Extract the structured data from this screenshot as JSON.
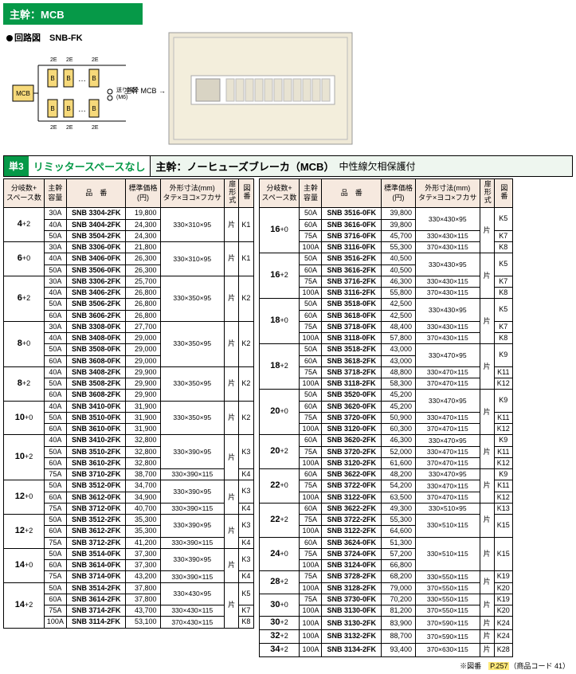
{
  "banner": "主幹：MCB",
  "circuit": {
    "label": "回路図",
    "model": "SNB-FK",
    "mcb": "MCB",
    "note": "送り端子\n(M6)",
    "bk": "B",
    "tap": "2E"
  },
  "photo": {
    "label": "主幹 MCB"
  },
  "subheader": {
    "badge": "単3",
    "txt1": "リミッタースペースなし",
    "txt2a": "主幹：ノーヒューズブレーカ（MCB）",
    "txt2b": "中性線欠相保護付"
  },
  "headers": {
    "c1": "分岐数+\nスペース数",
    "c2": "主幹\n容量",
    "c3": "品　番",
    "c4": "標準価格\n(円)",
    "c5": "外形寸法(mm)\nタテ×ヨコ×フカサ",
    "c6": "扉形式",
    "c7": "図番"
  },
  "left": [
    {
      "bc": "4+2",
      "rows": [
        {
          "cap": "30A",
          "pn": "SNB 3304-2FK",
          "price": "19,800",
          "dim": "330×310×95",
          "door": "片",
          "fig": "K1",
          "dimspan": 3,
          "doorspan": 3
        },
        {
          "cap": "40A",
          "pn": "SNB 3404-2FK",
          "price": "24,300"
        },
        {
          "cap": "50A",
          "pn": "SNB 3504-2FK",
          "price": "24,300"
        }
      ]
    },
    {
      "bc": "6+0",
      "rows": [
        {
          "cap": "30A",
          "pn": "SNB 3306-0FK",
          "price": "21,800",
          "dim": "330×310×95",
          "door": "片",
          "fig": "K1",
          "dimspan": 3,
          "doorspan": 3
        },
        {
          "cap": "40A",
          "pn": "SNB 3406-0FK",
          "price": "26,300"
        },
        {
          "cap": "50A",
          "pn": "SNB 3506-0FK",
          "price": "26,300"
        }
      ]
    },
    {
      "bc": "6+2",
      "rows": [
        {
          "cap": "30A",
          "pn": "SNB 3306-2FK",
          "price": "25,700",
          "dim": "330×350×95",
          "door": "片",
          "fig": "K2",
          "dimspan": 4,
          "doorspan": 4
        },
        {
          "cap": "40A",
          "pn": "SNB 3406-2FK",
          "price": "26,800"
        },
        {
          "cap": "50A",
          "pn": "SNB 3506-2FK",
          "price": "26,800"
        },
        {
          "cap": "60A",
          "pn": "SNB 3606-2FK",
          "price": "26,800"
        }
      ]
    },
    {
      "bc": "8+0",
      "rows": [
        {
          "cap": "30A",
          "pn": "SNB 3308-0FK",
          "price": "27,700",
          "dim": "330×350×95",
          "door": "片",
          "fig": "K2",
          "dimspan": 4,
          "doorspan": 4
        },
        {
          "cap": "40A",
          "pn": "SNB 3408-0FK",
          "price": "29,000"
        },
        {
          "cap": "50A",
          "pn": "SNB 3508-0FK",
          "price": "29,000"
        },
        {
          "cap": "60A",
          "pn": "SNB 3608-0FK",
          "price": "29,000"
        }
      ]
    },
    {
      "bc": "8+2",
      "rows": [
        {
          "cap": "40A",
          "pn": "SNB 3408-2FK",
          "price": "29,900",
          "dim": "330×350×95",
          "door": "片",
          "fig": "K2",
          "dimspan": 3,
          "doorspan": 3
        },
        {
          "cap": "50A",
          "pn": "SNB 3508-2FK",
          "price": "29,900"
        },
        {
          "cap": "60A",
          "pn": "SNB 3608-2FK",
          "price": "29,900"
        }
      ]
    },
    {
      "bc": "10+0",
      "rows": [
        {
          "cap": "40A",
          "pn": "SNB 3410-0FK",
          "price": "31,900",
          "dim": "330×350×95",
          "door": "片",
          "fig": "K2",
          "dimspan": 3,
          "doorspan": 3
        },
        {
          "cap": "50A",
          "pn": "SNB 3510-0FK",
          "price": "31,900"
        },
        {
          "cap": "60A",
          "pn": "SNB 3610-0FK",
          "price": "31,900"
        }
      ]
    },
    {
      "bc": "10+2",
      "rows": [
        {
          "cap": "40A",
          "pn": "SNB 3410-2FK",
          "price": "32,800",
          "dim": "330×390×95",
          "door": "片",
          "fig": "K3",
          "dimspan": 3,
          "doorspan": 4
        },
        {
          "cap": "50A",
          "pn": "SNB 3510-2FK",
          "price": "32,800"
        },
        {
          "cap": "60A",
          "pn": "SNB 3610-2FK",
          "price": "32,800"
        },
        {
          "cap": "75A",
          "pn": "SNB 3710-2FK",
          "price": "38,700",
          "dim": "330×390×115",
          "fig": "K4",
          "dimspan": 1
        }
      ]
    },
    {
      "bc": "12+0",
      "rows": [
        {
          "cap": "50A",
          "pn": "SNB 3512-0FK",
          "price": "34,700",
          "dim": "330×390×95",
          "door": "片",
          "fig": "K3",
          "dimspan": 2,
          "doorspan": 3
        },
        {
          "cap": "60A",
          "pn": "SNB 3612-0FK",
          "price": "34,900"
        },
        {
          "cap": "75A",
          "pn": "SNB 3712-0FK",
          "price": "40,700",
          "dim": "330×390×115",
          "fig": "K4",
          "dimspan": 1
        }
      ]
    },
    {
      "bc": "12+2",
      "rows": [
        {
          "cap": "50A",
          "pn": "SNB 3512-2FK",
          "price": "35,300",
          "dim": "330×390×95",
          "door": "片",
          "fig": "K3",
          "dimspan": 2,
          "doorspan": 3
        },
        {
          "cap": "60A",
          "pn": "SNB 3612-2FK",
          "price": "35,300"
        },
        {
          "cap": "75A",
          "pn": "SNB 3712-2FK",
          "price": "41,200",
          "dim": "330×390×115",
          "fig": "K4",
          "dimspan": 1
        }
      ]
    },
    {
      "bc": "14+0",
      "rows": [
        {
          "cap": "50A",
          "pn": "SNB 3514-0FK",
          "price": "37,300",
          "dim": "330×390×95",
          "door": "片",
          "fig": "K3",
          "dimspan": 2,
          "doorspan": 3
        },
        {
          "cap": "60A",
          "pn": "SNB 3614-0FK",
          "price": "37,300"
        },
        {
          "cap": "75A",
          "pn": "SNB 3714-0FK",
          "price": "43,200",
          "dim": "330×390×115",
          "fig": "K4",
          "dimspan": 1
        }
      ]
    },
    {
      "bc": "14+2",
      "rows": [
        {
          "cap": "50A",
          "pn": "SNB 3514-2FK",
          "price": "37,800",
          "dim": "330×430×95",
          "fig": "K5",
          "dimspan": 2,
          "doorspan": 4,
          "door": "片"
        },
        {
          "cap": "60A",
          "pn": "SNB 3614-2FK",
          "price": "37,800"
        },
        {
          "cap": "75A",
          "pn": "SNB 3714-2FK",
          "price": "43,700",
          "dim": "330×430×115",
          "fig": "K7",
          "dimspan": 1
        },
        {
          "cap": "100A",
          "pn": "SNB 3114-2FK",
          "price": "53,100",
          "dim": "370×430×115",
          "fig": "K8",
          "dimspan": 1
        }
      ]
    }
  ],
  "right": [
    {
      "bc": "16+0",
      "rows": [
        {
          "cap": "50A",
          "pn": "SNB 3516-0FK",
          "price": "39,800",
          "dim": "330×430×95",
          "fig": "K5",
          "dimspan": 2,
          "door": "片",
          "doorspan": 4
        },
        {
          "cap": "60A",
          "pn": "SNB 3616-0FK",
          "price": "39,800"
        },
        {
          "cap": "75A",
          "pn": "SNB 3716-0FK",
          "price": "45,700",
          "dim": "330×430×115",
          "fig": "K7",
          "dimspan": 1
        },
        {
          "cap": "100A",
          "pn": "SNB 3116-0FK",
          "price": "55,300",
          "dim": "370×430×115",
          "fig": "K8",
          "dimspan": 1
        }
      ]
    },
    {
      "bc": "16+2",
      "rows": [
        {
          "cap": "50A",
          "pn": "SNB 3516-2FK",
          "price": "40,500",
          "dim": "330×430×95",
          "fig": "K5",
          "dimspan": 2,
          "door": "片",
          "doorspan": 4
        },
        {
          "cap": "60A",
          "pn": "SNB 3616-2FK",
          "price": "40,500"
        },
        {
          "cap": "75A",
          "pn": "SNB 3716-2FK",
          "price": "46,300",
          "dim": "330×430×115",
          "fig": "K7",
          "dimspan": 1
        },
        {
          "cap": "100A",
          "pn": "SNB 3116-2FK",
          "price": "55,800",
          "dim": "370×430×115",
          "fig": "K8",
          "dimspan": 1
        }
      ]
    },
    {
      "bc": "18+0",
      "rows": [
        {
          "cap": "50A",
          "pn": "SNB 3518-0FK",
          "price": "42,500",
          "dim": "330×430×95",
          "fig": "K5",
          "dimspan": 2,
          "door": "片",
          "doorspan": 4
        },
        {
          "cap": "60A",
          "pn": "SNB 3618-0FK",
          "price": "42,500"
        },
        {
          "cap": "75A",
          "pn": "SNB 3718-0FK",
          "price": "48,400",
          "dim": "330×430×115",
          "fig": "K7",
          "dimspan": 1
        },
        {
          "cap": "100A",
          "pn": "SNB 3118-0FK",
          "price": "57,800",
          "dim": "370×430×115",
          "fig": "K8",
          "dimspan": 1
        }
      ]
    },
    {
      "bc": "18+2",
      "rows": [
        {
          "cap": "50A",
          "pn": "SNB 3518-2FK",
          "price": "43,000",
          "dim": "330×470×95",
          "fig": "K9",
          "dimspan": 2,
          "door": "片",
          "doorspan": 4
        },
        {
          "cap": "60A",
          "pn": "SNB 3618-2FK",
          "price": "43,000"
        },
        {
          "cap": "75A",
          "pn": "SNB 3718-2FK",
          "price": "48,800",
          "dim": "330×470×115",
          "fig": "K11",
          "dimspan": 1
        },
        {
          "cap": "100A",
          "pn": "SNB 3118-2FK",
          "price": "58,300",
          "dim": "370×470×115",
          "fig": "K12",
          "dimspan": 1
        }
      ]
    },
    {
      "bc": "20+0",
      "rows": [
        {
          "cap": "50A",
          "pn": "SNB 3520-0FK",
          "price": "45,200",
          "dim": "330×470×95",
          "fig": "K9",
          "dimspan": 2,
          "door": "片",
          "doorspan": 4
        },
        {
          "cap": "60A",
          "pn": "SNB 3620-0FK",
          "price": "45,200"
        },
        {
          "cap": "75A",
          "pn": "SNB 3720-0FK",
          "price": "50,900",
          "dim": "330×470×115",
          "fig": "K11",
          "dimspan": 1
        },
        {
          "cap": "100A",
          "pn": "SNB 3120-0FK",
          "price": "60,300",
          "dim": "370×470×115",
          "fig": "K12",
          "dimspan": 1
        }
      ]
    },
    {
      "bc": "20+2",
      "rows": [
        {
          "cap": "60A",
          "pn": "SNB 3620-2FK",
          "price": "46,300",
          "dim": "330×470×95",
          "fig": "K9",
          "dimspan": 1,
          "door": "片",
          "doorspan": 3
        },
        {
          "cap": "75A",
          "pn": "SNB 3720-2FK",
          "price": "52,000",
          "dim": "330×470×115",
          "fig": "K11",
          "dimspan": 1
        },
        {
          "cap": "100A",
          "pn": "SNB 3120-2FK",
          "price": "61,600",
          "dim": "370×470×115",
          "fig": "K12",
          "dimspan": 1
        }
      ]
    },
    {
      "bc": "22+0",
      "rows": [
        {
          "cap": "60A",
          "pn": "SNB 3622-0FK",
          "price": "48,200",
          "dim": "330×470×95",
          "fig": "K9",
          "dimspan": 1,
          "door": "片",
          "doorspan": 3
        },
        {
          "cap": "75A",
          "pn": "SNB 3722-0FK",
          "price": "54,200",
          "dim": "330×470×115",
          "fig": "K11",
          "dimspan": 1
        },
        {
          "cap": "100A",
          "pn": "SNB 3122-0FK",
          "price": "63,500",
          "dim": "370×470×115",
          "fig": "K12",
          "dimspan": 1
        }
      ]
    },
    {
      "bc": "22+2",
      "rows": [
        {
          "cap": "60A",
          "pn": "SNB 3622-2FK",
          "price": "49,300",
          "dim": "330×510×95",
          "fig": "K13",
          "dimspan": 1,
          "door": "片",
          "doorspan": 3
        },
        {
          "cap": "75A",
          "pn": "SNB 3722-2FK",
          "price": "55,300",
          "dim": "330×510×115",
          "fig": "K15",
          "dimspan": 2
        },
        {
          "cap": "100A",
          "pn": "SNB 3122-2FK",
          "price": "64,600"
        }
      ]
    },
    {
      "bc": "24+0",
      "rows": [
        {
          "cap": "60A",
          "pn": "SNB 3624-0FK",
          "price": "51,300",
          "dim": "330×510×115",
          "fig": "K15",
          "dimspan": 3,
          "door": "片",
          "doorspan": 3
        },
        {
          "cap": "75A",
          "pn": "SNB 3724-0FK",
          "price": "57,200"
        },
        {
          "cap": "100A",
          "pn": "SNB 3124-0FK",
          "price": "66,800"
        }
      ]
    },
    {
      "bc": "28+2",
      "rows": [
        {
          "cap": "75A",
          "pn": "SNB 3728-2FK",
          "price": "68,200",
          "dim": "330×550×115",
          "fig": "K19",
          "dimspan": 1,
          "door": "片",
          "doorspan": 2
        },
        {
          "cap": "100A",
          "pn": "SNB 3128-2FK",
          "price": "79,000",
          "dim": "370×550×115",
          "fig": "K20",
          "dimspan": 1
        }
      ]
    },
    {
      "bc": "30+0",
      "rows": [
        {
          "cap": "75A",
          "pn": "SNB 3730-0FK",
          "price": "70,200",
          "dim": "330×550×115",
          "fig": "K19",
          "dimspan": 1,
          "door": "片",
          "doorspan": 2
        },
        {
          "cap": "100A",
          "pn": "SNB 3130-0FK",
          "price": "81,200",
          "dim": "370×550×115",
          "fig": "K20",
          "dimspan": 1
        }
      ]
    },
    {
      "bc": "30+2",
      "rows": [
        {
          "cap": "100A",
          "pn": "SNB 3130-2FK",
          "price": "83,900",
          "dim": "370×590×115",
          "fig": "K24",
          "dimspan": 1,
          "door": "片",
          "doorspan": 1
        }
      ]
    },
    {
      "bc": "32+2",
      "rows": [
        {
          "cap": "100A",
          "pn": "SNB 3132-2FK",
          "price": "88,700",
          "dim": "370×590×115",
          "fig": "K24",
          "dimspan": 1,
          "door": "片",
          "doorspan": 1
        }
      ]
    },
    {
      "bc": "34+2",
      "rows": [
        {
          "cap": "100A",
          "pn": "SNB 3134-2FK",
          "price": "93,400",
          "dim": "370×630×115",
          "fig": "K28",
          "dimspan": 1,
          "door": "片",
          "doorspan": 1
        }
      ]
    }
  ],
  "footnote": {
    "a": "※図番",
    "b": "P.257",
    "c": "（商品コード 41）"
  }
}
